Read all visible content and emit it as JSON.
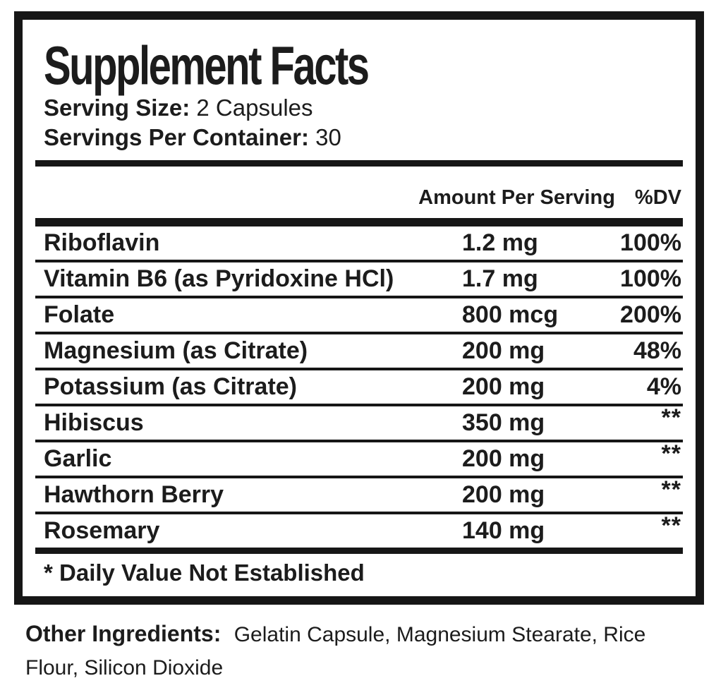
{
  "label": {
    "title": "Supplement Facts",
    "serving_size_label": "Serving Size:",
    "serving_size_value": "2 Capsules",
    "servings_per_container_label": "Servings Per Container:",
    "servings_per_container_value": "30",
    "columns": {
      "amount": "Amount Per Serving",
      "dv": "%DV"
    },
    "rows": [
      {
        "name": "Riboflavin",
        "amount": "1.2 mg",
        "dv": "100%"
      },
      {
        "name": "Vitamin B6 (as Pyridoxine HCl)",
        "amount": "1.7 mg",
        "dv": "100%"
      },
      {
        "name": "Folate",
        "amount": "800 mcg",
        "dv": "200%"
      },
      {
        "name": "Magnesium (as Citrate)",
        "amount": "200 mg",
        "dv": "48%"
      },
      {
        "name": "Potassium (as Citrate)",
        "amount": "200 mg",
        "dv": "4%"
      },
      {
        "name": "Hibiscus",
        "amount": "350 mg",
        "dv": "**"
      },
      {
        "name": "Garlic",
        "amount": "200 mg",
        "dv": "**"
      },
      {
        "name": "Hawthorn Berry",
        "amount": "200 mg",
        "dv": "**"
      },
      {
        "name": "Rosemary",
        "amount": "140 mg",
        "dv": "**"
      }
    ],
    "footnote": "* Daily Value Not Established",
    "other_ingredients_label": "Other Ingredients:",
    "other_ingredients_value": "Gelatin Capsule, Magnesium Stearate, Rice Flour, Silicon Dioxide",
    "colors": {
      "text": "#1c1c1c",
      "rule": "#161616",
      "background": "#ffffff"
    }
  }
}
